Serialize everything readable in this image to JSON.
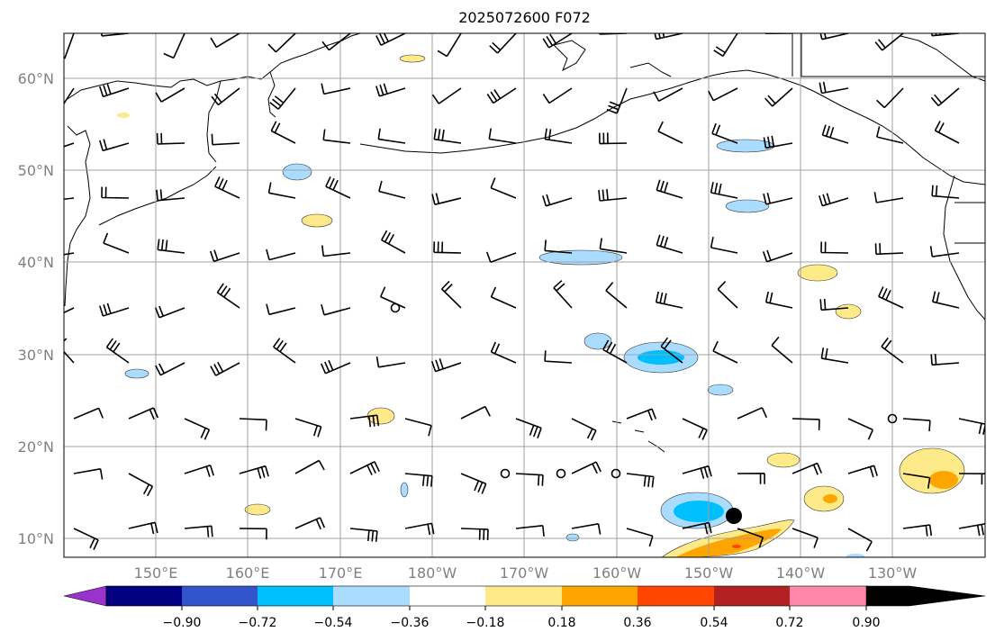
{
  "title": "2025072600 F072",
  "map": {
    "lat_labels": [
      "60°N",
      "50°N",
      "40°N",
      "30°N",
      "20°N",
      "10°N"
    ],
    "lon_labels": [
      "150°E",
      "160°E",
      "170°E",
      "180°W",
      "170°W",
      "160°W",
      "150°W",
      "140°W",
      "130°W"
    ],
    "grid_on": true,
    "storm_marker": "filled-circle"
  },
  "colorbar": {
    "tick_labels": [
      "−0.90",
      "−0.72",
      "−0.54",
      "−0.36",
      "−0.18",
      "0.18",
      "0.36",
      "0.54",
      "0.72",
      "0.90"
    ],
    "colors": [
      "#9933cc",
      "#000080",
      "#3355cc",
      "#00bfff",
      "#aadcff",
      "#ffffff",
      "#ffea8a",
      "#ffa500",
      "#ff4500",
      "#b22222",
      "#ff88aa"
    ]
  }
}
